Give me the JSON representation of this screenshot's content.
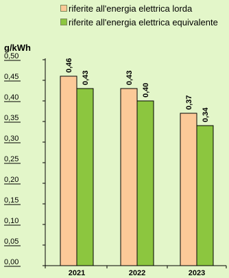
{
  "chart_data": {
    "type": "bar",
    "categories": [
      "2021",
      "2022",
      "2023"
    ],
    "series": [
      {
        "name": "riferite all'energia elettrica lorda",
        "color": "#fcc998",
        "values": [
          0.46,
          0.43,
          0.37
        ],
        "labels": [
          "0,46",
          "0,43",
          "0,37"
        ]
      },
      {
        "name": "riferite all'energia elettrica equivalente",
        "color": "#8cc63f",
        "values": [
          0.43,
          0.4,
          0.34
        ],
        "labels": [
          "0,43",
          "0,40",
          "0,34"
        ]
      }
    ],
    "ylabel": "g/kWh",
    "ylim": [
      0,
      0.5
    ],
    "yticks": [
      {
        "value": 0.0,
        "label": "0,00"
      },
      {
        "value": 0.05,
        "label": "0,05"
      },
      {
        "value": 0.1,
        "label": "0,10"
      },
      {
        "value": 0.15,
        "label": "0,15"
      },
      {
        "value": 0.2,
        "label": "0,20"
      },
      {
        "value": 0.25,
        "label": "0,25"
      },
      {
        "value": 0.3,
        "label": "0,30"
      },
      {
        "value": 0.35,
        "label": "0,35"
      },
      {
        "value": 0.4,
        "label": "0,40"
      },
      {
        "value": 0.45,
        "label": "0,45"
      },
      {
        "value": 0.5,
        "label": "0,50"
      }
    ],
    "grid": false,
    "legend": "top"
  }
}
